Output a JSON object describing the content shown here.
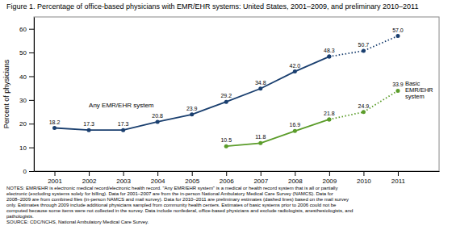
{
  "chart_data": {
    "type": "line",
    "title": "Figure 1. Percentage of office-based physicians with EMR/EHR systems: United States, 2001–2009, and preliminary 2010–2011",
    "ylabel": "Percent of physicians",
    "x": [
      2001,
      2002,
      2003,
      2004,
      2005,
      2006,
      2007,
      2008,
      2009,
      2010,
      2011
    ],
    "xlim": [
      2000.4,
      2012.2
    ],
    "xticks": [
      2001,
      2002,
      2003,
      2004,
      2005,
      2006,
      2007,
      2008,
      2009,
      2010,
      2011
    ],
    "ylim": [
      0,
      65
    ],
    "yticks": [
      0,
      10,
      20,
      30,
      40,
      50,
      60
    ],
    "grid": false,
    "data_labels": true,
    "marker": "circle",
    "annotations": [
      "NOTES: EMR/EHR is electronic medical record/electronic health record. \"Any EMR/EHR system\" is a medical or health record system that is all or partially\nelectronic (excluding systems solely for billing). Data for 2001–2007 are from the in-person National Ambulatory Medical Care Survey (NAMCS). Data for\n2008–2009 are from combined files (in-person NAMCS and mail survey). Data for 2010–2011 are preliminary estimates (dashed lines) based on the mail survey\nonly. Estimates through 2009 include additional physicians sampled from community health centers. Estimates of basic systems prior to 2006 could not be\ncomputed because some items were not collected in the survey. Data include nonfederal, office-based physicians and exclude radiologists, anesthesiologists, and\npathologists.\nSOURCE: CDC/NCHS, National Ambulatory Medical Care Survey."
    ],
    "series": [
      {
        "name": "Any EMR/EHR system",
        "color": "#1a3f6f",
        "line_style": "solid",
        "values": [
          18.2,
          17.3,
          17.3,
          20.8,
          23.9,
          29.2,
          34.8,
          42.0,
          48.3,
          null,
          null
        ],
        "value_labels": [
          "18.2",
          "17.3",
          "17.3",
          "20.8",
          "23.9",
          "29.2",
          "34.8",
          "42.0",
          "48.3",
          null,
          null
        ]
      },
      {
        "color": "#1a3f6f",
        "line_style": "dotted",
        "values": [
          null,
          null,
          null,
          null,
          null,
          null,
          null,
          null,
          48.3,
          50.7,
          57.0
        ],
        "value_labels": [
          null,
          null,
          null,
          null,
          null,
          null,
          null,
          null,
          null,
          "50.7",
          "57.0"
        ]
      },
      {
        "name": "Basic EMR/EHR system",
        "color": "#5b9c2a",
        "line_style": "solid",
        "values": [
          null,
          null,
          null,
          null,
          null,
          10.5,
          11.8,
          16.9,
          21.8,
          null,
          null
        ],
        "value_labels": [
          null,
          null,
          null,
          null,
          null,
          "10.5",
          "11.8",
          "16.9",
          "21.8",
          null,
          null
        ]
      },
      {
        "color": "#5b9c2a",
        "line_style": "dotted",
        "values": [
          null,
          null,
          null,
          null,
          null,
          null,
          null,
          null,
          21.8,
          24.9,
          33.9
        ],
        "value_labels": [
          null,
          null,
          null,
          null,
          null,
          null,
          null,
          null,
          null,
          "24.9",
          "33.9"
        ]
      }
    ]
  }
}
